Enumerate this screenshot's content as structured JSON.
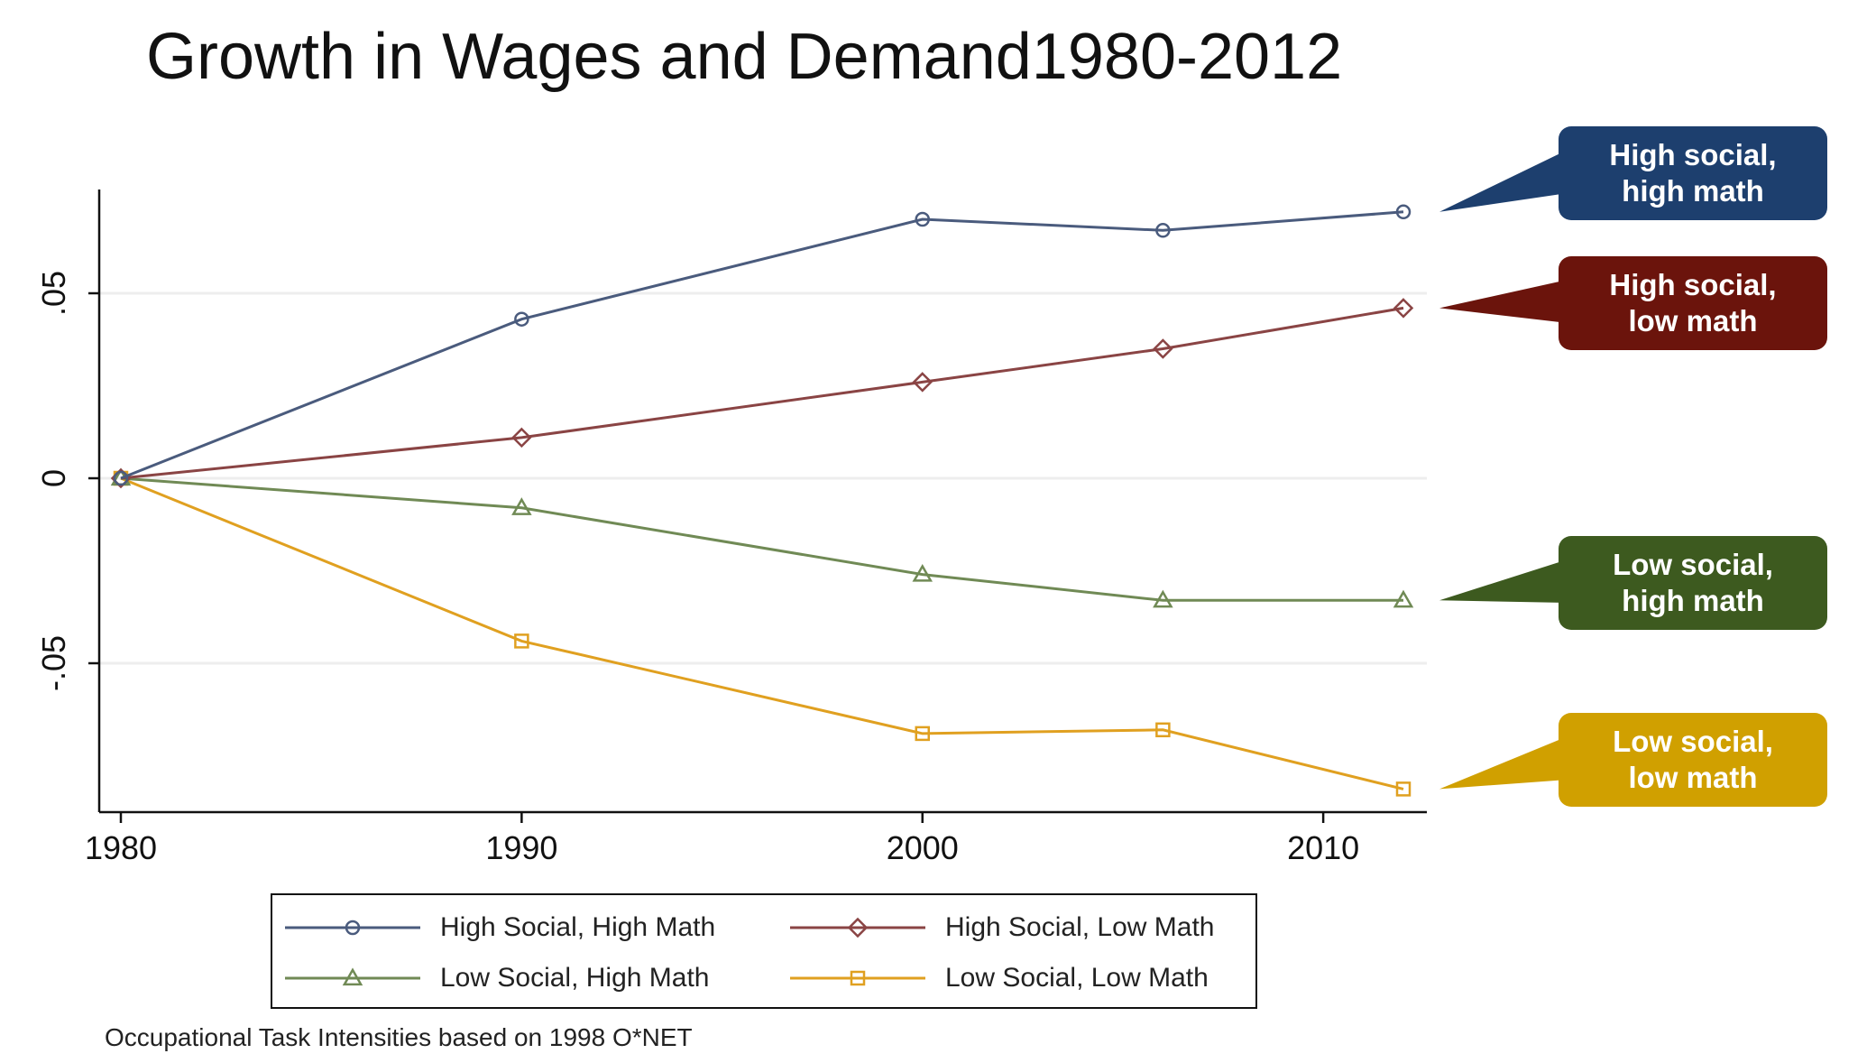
{
  "chart_data": {
    "type": "line",
    "title": "Growth in Wages and Demand1980-2012",
    "xlabel": "",
    "ylabel": "",
    "x": [
      1980,
      1990,
      2000,
      2006,
      2012
    ],
    "xlim": [
      1980,
      2012
    ],
    "ylim": [
      -0.09,
      0.078
    ],
    "xticks": [
      1980,
      1990,
      2000,
      2010
    ],
    "yticks": [
      0.05,
      0,
      -0.05
    ],
    "ytick_labels": [
      ".05",
      "0",
      "-.05"
    ],
    "grid": "horizontal",
    "series": [
      {
        "name": "High Social, High Math",
        "color": "#4a5b7d",
        "marker": "circle",
        "values": [
          0,
          0.043,
          0.07,
          0.067,
          0.072
        ]
      },
      {
        "name": "High Social, Low Math",
        "color": "#8a4444",
        "marker": "diamond",
        "values": [
          0,
          0.011,
          0.026,
          0.035,
          0.046
        ]
      },
      {
        "name": "Low Social, High Math",
        "color": "#708a55",
        "marker": "triangle",
        "values": [
          0,
          -0.008,
          -0.026,
          -0.033,
          -0.033
        ]
      },
      {
        "name": "Low Social, Low Math",
        "color": "#e0a020",
        "marker": "square",
        "values": [
          0,
          -0.044,
          -0.069,
          -0.068,
          -0.084
        ]
      }
    ],
    "annotations": [
      {
        "text": "High social,\nhigh math",
        "color": "#1d3f6e",
        "series": 0
      },
      {
        "text": "High social,\nlow math",
        "color": "#6b140c",
        "series": 1
      },
      {
        "text": "Low social,\nhigh math",
        "color": "#3d5a1f",
        "series": 2
      },
      {
        "text": "Low social,\nlow math",
        "color": "#d0a000",
        "series": 3
      }
    ],
    "legend_position": "bottom",
    "note": "Occupational Task Intensities based on 1998 O*NET"
  }
}
